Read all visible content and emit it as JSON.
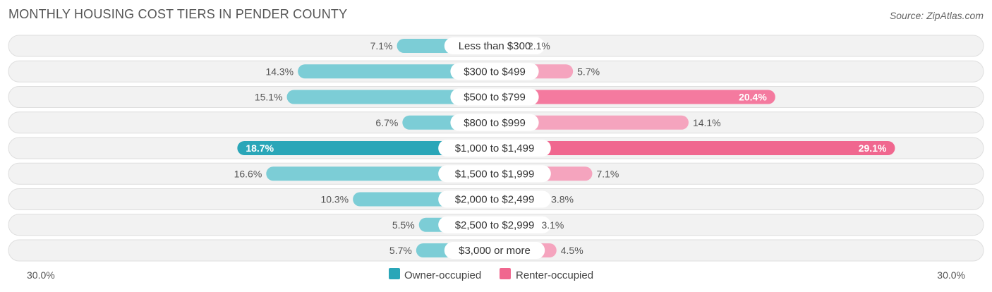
{
  "header": {
    "title": "MONTHLY HOUSING COST TIERS IN PENDER COUNTY",
    "source": "Source: ZipAtlas.com"
  },
  "colors": {
    "owner_light": "#7ccdd6",
    "owner_strong": "#2aa6b8",
    "renter_light": "#f5a4be",
    "renter_strong": "#f0678f",
    "row_bg": "#f2f2f2",
    "row_border": "#dedede"
  },
  "chart_data": {
    "type": "bar",
    "orientation": "horizontal-diverging",
    "categories": [
      "Less than $300",
      "$300 to $499",
      "$500 to $799",
      "$800 to $999",
      "$1,000 to $1,499",
      "$1,500 to $1,999",
      "$2,000 to $2,499",
      "$2,500 to $2,999",
      "$3,000 or more"
    ],
    "series": [
      {
        "name": "Owner-occupied",
        "values": [
          7.1,
          14.3,
          15.1,
          6.7,
          18.7,
          16.6,
          10.3,
          5.5,
          5.7
        ]
      },
      {
        "name": "Renter-occupied",
        "values": [
          2.1,
          5.7,
          20.4,
          14.1,
          29.1,
          7.1,
          3.8,
          3.1,
          4.5
        ]
      }
    ],
    "value_labels": {
      "owner": [
        "7.1%",
        "14.3%",
        "15.1%",
        "6.7%",
        "18.7%",
        "16.6%",
        "10.3%",
        "5.5%",
        "5.7%"
      ],
      "renter": [
        "2.1%",
        "5.7%",
        "20.4%",
        "14.1%",
        "29.1%",
        "7.1%",
        "3.8%",
        "3.1%",
        "4.5%"
      ]
    },
    "axis_labels": {
      "left": "30.0%",
      "right": "30.0%"
    },
    "xlim": [
      -30,
      30
    ],
    "legend": {
      "position": "bottom-center",
      "items": [
        "Owner-occupied",
        "Renter-occupied"
      ]
    }
  }
}
